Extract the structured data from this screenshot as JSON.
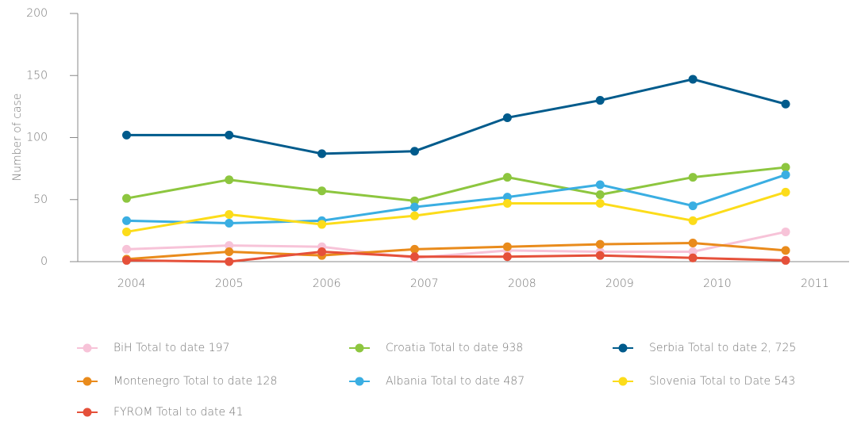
{
  "chart_data": {
    "type": "line",
    "y_label": "Number of case",
    "x": [
      2003.95,
      2005,
      2005.95,
      2006.9,
      2007.85,
      2008.8,
      2009.75,
      2010.7
    ],
    "xlim": [
      2003.45,
      2011.35
    ],
    "xticks": [
      2004,
      2005,
      2006,
      2007,
      2008,
      2009,
      2010,
      2011
    ],
    "ylim": [
      0,
      200
    ],
    "yticks": [
      0,
      50,
      100,
      150,
      200
    ],
    "legend": "bottom",
    "series": [
      {
        "name": "BiH Total to date 197",
        "color": "#f7c3d8",
        "values": [
          10,
          13,
          12,
          3,
          9,
          8,
          8,
          24
        ]
      },
      {
        "name": "Croatia Total to date 938",
        "color": "#8dc63f",
        "values": [
          51,
          66,
          57,
          49,
          68,
          54,
          68,
          76
        ]
      },
      {
        "name": "Serbia Total to date 2, 725",
        "color": "#005b8c",
        "values": [
          102,
          102,
          87,
          89,
          116,
          130,
          147,
          127
        ]
      },
      {
        "name": "Montenegro Total to date 128",
        "color": "#e98b1c",
        "values": [
          2,
          8,
          5,
          10,
          12,
          14,
          15,
          9
        ]
      },
      {
        "name": "Albania Total to date 487",
        "color": "#3aaee2",
        "values": [
          33,
          31,
          33,
          44,
          52,
          62,
          45,
          70
        ]
      },
      {
        "name": "Slovenia Total to Date 543",
        "color": "#fcdc1a",
        "values": [
          24,
          38,
          30,
          37,
          47,
          47,
          33,
          56
        ]
      },
      {
        "name": "FYROM Total to date 41",
        "color": "#e5503a",
        "values": [
          1,
          0,
          8,
          4,
          4,
          5,
          3,
          1
        ]
      }
    ]
  }
}
